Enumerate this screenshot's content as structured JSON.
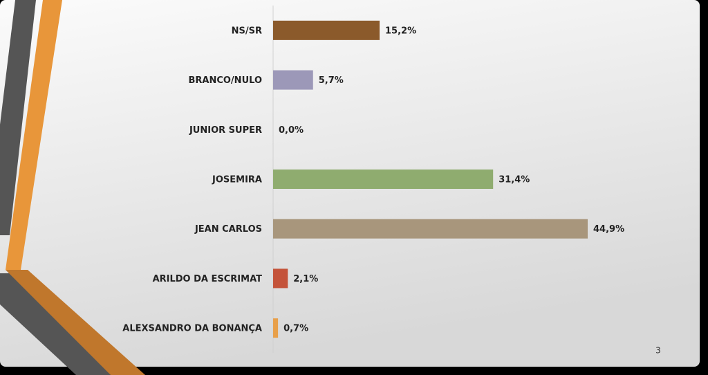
{
  "chart_data": {
    "type": "bar",
    "orientation": "horizontal",
    "categories": [
      "NS/SR",
      "BRANCO/NULO",
      "JUNIOR SUPER",
      "JOSEMIRA",
      "JEAN CARLOS",
      "ARILDO DA ESCRIMAT",
      "ALEXSANDRO DA BONANÇA"
    ],
    "values": [
      15.2,
      5.7,
      0.0,
      31.4,
      44.9,
      2.1,
      0.7
    ],
    "value_labels": [
      "15,2%",
      "5,7%",
      "0,0%",
      "31,4%",
      "44,9%",
      "2,1%",
      "0,7%"
    ],
    "colors": [
      "#8b5a2b",
      "#9c98b8",
      "#999999",
      "#8fac6f",
      "#a8967c",
      "#c4533a",
      "#e8a04a"
    ]
  },
  "page_number": "3"
}
